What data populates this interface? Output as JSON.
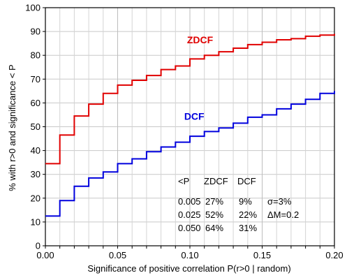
{
  "chart_data": {
    "type": "line",
    "xlabel": "Significance of positive correlation P(r>0 | random)",
    "ylabel": "% with r>0 and significance < P",
    "xlim": [
      0,
      0.2
    ],
    "ylim": [
      0,
      100
    ],
    "grid": true,
    "x_ticks": [
      "0.00",
      "0.05",
      "0.10",
      "0.15",
      "0.20"
    ],
    "y_ticks": [
      "0",
      "10",
      "20",
      "30",
      "40",
      "50",
      "60",
      "70",
      "80",
      "90",
      "100"
    ],
    "step": true,
    "series": [
      {
        "name": "ZDCF",
        "color": "#e00000",
        "label_at": [
          0.107,
          85
        ],
        "x": [
          0.0,
          0.01,
          0.02,
          0.03,
          0.04,
          0.05,
          0.06,
          0.07,
          0.08,
          0.09,
          0.1,
          0.11,
          0.12,
          0.13,
          0.14,
          0.15,
          0.16,
          0.17,
          0.18,
          0.19,
          0.2
        ],
        "y": [
          34.5,
          46.5,
          54.5,
          59.5,
          64.0,
          67.5,
          69.5,
          71.5,
          74.0,
          75.5,
          78.5,
          80.0,
          81.5,
          83.0,
          84.5,
          85.5,
          86.5,
          87.0,
          88.0,
          88.5,
          89.0
        ]
      },
      {
        "name": "DCF",
        "color": "#0000dd",
        "label_at": [
          0.103,
          53
        ],
        "x": [
          0.0,
          0.01,
          0.02,
          0.03,
          0.04,
          0.05,
          0.06,
          0.07,
          0.08,
          0.09,
          0.1,
          0.11,
          0.12,
          0.13,
          0.14,
          0.15,
          0.16,
          0.17,
          0.18,
          0.19,
          0.2
        ],
        "y": [
          12.5,
          19.0,
          25.0,
          28.5,
          31.0,
          34.5,
          36.5,
          39.5,
          41.5,
          43.5,
          46.0,
          48.0,
          49.5,
          51.5,
          54.0,
          55.0,
          57.5,
          59.5,
          61.5,
          64.0,
          65.0
        ]
      }
    ],
    "annotation_table": {
      "header": [
        "<P",
        "ZDCF",
        "DCF"
      ],
      "rows": [
        [
          "0.005",
          "27%",
          "9%",
          "σ=3%"
        ],
        [
          "0.025",
          "52%",
          "22%",
          "ΔM=0.2"
        ],
        [
          "0.050",
          "64%",
          "31%",
          ""
        ]
      ]
    }
  }
}
